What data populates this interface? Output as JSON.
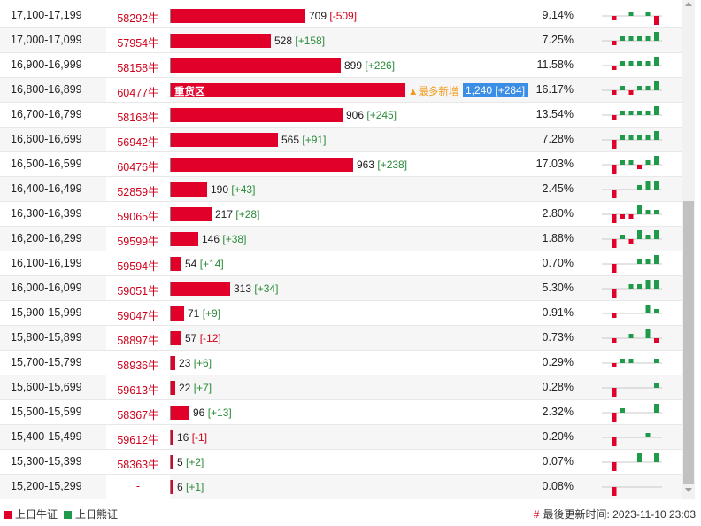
{
  "rows": [
    {
      "range": "17,100-17,199",
      "cbbc": "58292牛",
      "value": 709,
      "bar_value": "709",
      "change": "-509",
      "pct": "9.14%",
      "spark": [
        0,
        -1,
        0,
        1,
        0,
        1,
        -2
      ]
    },
    {
      "range": "17,000-17,099",
      "cbbc": "57954牛",
      "value": 528,
      "bar_value": "528",
      "change": "+158",
      "pct": "7.25%",
      "spark": [
        0,
        -1,
        1,
        1,
        1,
        1,
        2
      ]
    },
    {
      "range": "16,900-16,999",
      "cbbc": "58158牛",
      "value": 899,
      "bar_value": "899",
      "change": "+226",
      "pct": "11.58%",
      "spark": [
        0,
        -1,
        1,
        1,
        1,
        1,
        2
      ]
    },
    {
      "range": "16,800-16,899",
      "cbbc": "60477牛",
      "value": 1240,
      "bar_value": "1,240",
      "change": "+284",
      "pct": "16.17%",
      "spark": [
        0,
        -1,
        1,
        -1,
        1,
        1,
        2
      ],
      "zone_label": "重货区",
      "note": "▲最多新增"
    },
    {
      "range": "16,700-16,799",
      "cbbc": "58168牛",
      "value": 906,
      "bar_value": "906",
      "change": "+245",
      "pct": "13.54%",
      "spark": [
        0,
        -1,
        1,
        1,
        1,
        1,
        2
      ]
    },
    {
      "range": "16,600-16,699",
      "cbbc": "56942牛",
      "value": 565,
      "bar_value": "565",
      "change": "+91",
      "pct": "7.28%",
      "spark": [
        0,
        -2,
        1,
        1,
        1,
        1,
        2
      ]
    },
    {
      "range": "16,500-16,599",
      "cbbc": "60476牛",
      "value": 963,
      "bar_value": "963",
      "change": "+238",
      "pct": "17.03%",
      "spark": [
        0,
        -2,
        1,
        1,
        -1,
        1,
        2
      ]
    },
    {
      "range": "16,400-16,499",
      "cbbc": "52859牛",
      "value": 190,
      "bar_value": "190",
      "change": "+43",
      "pct": "2.45%",
      "spark": [
        0,
        -2,
        0,
        0,
        1,
        2,
        2
      ]
    },
    {
      "range": "16,300-16,399",
      "cbbc": "59065牛",
      "value": 217,
      "bar_value": "217",
      "change": "+28",
      "pct": "2.80%",
      "spark": [
        0,
        -2,
        -1,
        -1,
        2,
        1,
        1
      ]
    },
    {
      "range": "16,200-16,299",
      "cbbc": "59599牛",
      "value": 146,
      "bar_value": "146",
      "change": "+38",
      "pct": "1.88%",
      "spark": [
        0,
        -2,
        1,
        -1,
        2,
        1,
        2
      ]
    },
    {
      "range": "16,100-16,199",
      "cbbc": "59594牛",
      "value": 54,
      "bar_value": "54",
      "change": "+14",
      "pct": "0.70%",
      "spark": [
        0,
        -2,
        0,
        0,
        1,
        1,
        2
      ]
    },
    {
      "range": "16,000-16,099",
      "cbbc": "59051牛",
      "value": 313,
      "bar_value": "313",
      "change": "+34",
      "pct": "5.30%",
      "spark": [
        0,
        -2,
        0,
        1,
        1,
        2,
        2
      ]
    },
    {
      "range": "15,900-15,999",
      "cbbc": "59047牛",
      "value": 71,
      "bar_value": "71",
      "change": "+9",
      "pct": "0.91%",
      "spark": [
        0,
        -1,
        0,
        0,
        0,
        2,
        1
      ]
    },
    {
      "range": "15,800-15,899",
      "cbbc": "58897牛",
      "value": 57,
      "bar_value": "57",
      "change": "-12",
      "pct": "0.73%",
      "spark": [
        0,
        -1,
        0,
        1,
        0,
        2,
        -1
      ]
    },
    {
      "range": "15,700-15,799",
      "cbbc": "58936牛",
      "value": 23,
      "bar_value": "23",
      "change": "+6",
      "pct": "0.29%",
      "spark": [
        0,
        -1,
        1,
        1,
        0,
        0,
        1
      ]
    },
    {
      "range": "15,600-15,699",
      "cbbc": "59613牛",
      "value": 22,
      "bar_value": "22",
      "change": "+7",
      "pct": "0.28%",
      "spark": [
        0,
        -2,
        0,
        0,
        0,
        0,
        1
      ]
    },
    {
      "range": "15,500-15,599",
      "cbbc": "58367牛",
      "value": 96,
      "bar_value": "96",
      "change": "+13",
      "pct": "2.32%",
      "spark": [
        0,
        -2,
        1,
        0,
        0,
        0,
        2
      ]
    },
    {
      "range": "15,400-15,499",
      "cbbc": "59612牛",
      "value": 16,
      "bar_value": "16",
      "change": "-1",
      "pct": "0.20%",
      "spark": [
        0,
        -2,
        0,
        0,
        0,
        1,
        0
      ]
    },
    {
      "range": "15,300-15,399",
      "cbbc": "58363牛",
      "value": 5,
      "bar_value": "5",
      "change": "+2",
      "pct": "0.07%",
      "spark": [
        0,
        -2,
        0,
        0,
        2,
        0,
        2
      ]
    },
    {
      "range": "15,200-15,299",
      "cbbc": "-",
      "value": 6,
      "bar_value": "6",
      "change": "+1",
      "pct": "0.08%",
      "spark": [
        0,
        -2,
        0,
        0,
        0,
        0,
        0
      ]
    }
  ],
  "bar_max": 1240,
  "legend": {
    "bull_label": "上日牛证",
    "bear_label": "上日熊证"
  },
  "update": {
    "label": "最後更新时间:",
    "time": "2023-11-10 23:03",
    "hash": "#"
  },
  "colors": {
    "bull": "#e0002a",
    "bear": "#1f9a4a",
    "highlight": "#3a8ee6",
    "note": "#f29a1b"
  }
}
